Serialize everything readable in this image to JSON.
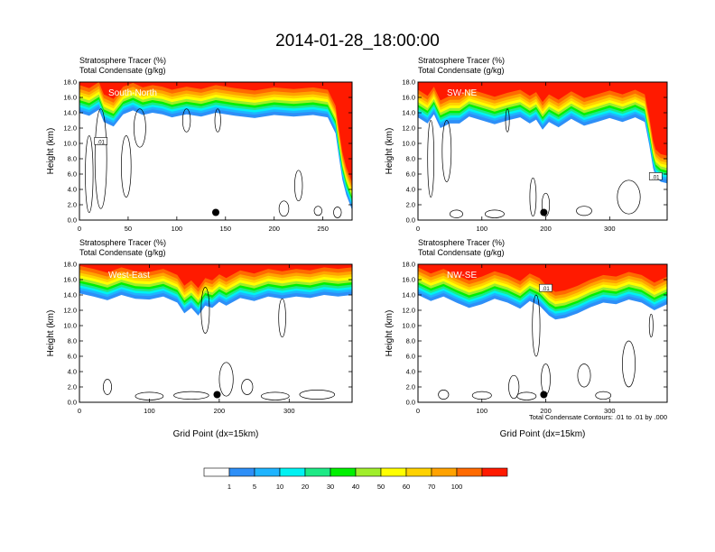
{
  "title": "2014-01-28_18:00:00",
  "colors": {
    "levels": [
      "#ffffff",
      "#2e8ff7",
      "#1fb4ff",
      "#00f2f2",
      "#1de985",
      "#00f000",
      "#a0ee2b",
      "#ffff00",
      "#ffd200",
      "#ffa200",
      "#ff6a00",
      "#ff1a00"
    ],
    "contour": "#000000",
    "marker": "#000000",
    "background": "#ffffff"
  },
  "chart_data": [
    {
      "type": "heatmap",
      "panel_label": "South-North",
      "subtitle": [
        "Stratosphere Tracer   (%)",
        "Total Condensate   (g/kg)"
      ],
      "xlabel": "",
      "ylabel": "Height (km)",
      "xlim": [
        0,
        280
      ],
      "ylim": [
        0,
        18
      ],
      "xticks": [
        0,
        50,
        100,
        150,
        200,
        250
      ],
      "yticks": [
        "0.0",
        "2.0",
        "4.0",
        "6.0",
        "8.0",
        "10.0",
        "12.0",
        "14.0",
        "16.0",
        "18.0"
      ],
      "marker": {
        "x": 140,
        "y": 1.0
      },
      "contour_labels": [
        {
          "text": ".01",
          "x": 22,
          "y": 10.2
        }
      ],
      "tracer_boundary": [
        [
          0,
          15.2
        ],
        [
          10,
          14.8
        ],
        [
          20,
          15.6
        ],
        [
          25,
          14.0
        ],
        [
          35,
          13.4
        ],
        [
          45,
          15.0
        ],
        [
          55,
          15.5
        ],
        [
          65,
          14.9
        ],
        [
          75,
          15.2
        ],
        [
          85,
          15.0
        ],
        [
          95,
          14.6
        ],
        [
          110,
          15.0
        ],
        [
          125,
          14.7
        ],
        [
          140,
          15.2
        ],
        [
          160,
          14.8
        ],
        [
          180,
          14.5
        ],
        [
          200,
          14.9
        ],
        [
          220,
          14.7
        ],
        [
          240,
          14.9
        ],
        [
          255,
          14.6
        ],
        [
          263,
          12.5
        ],
        [
          267,
          9.0
        ],
        [
          270,
          6.5
        ],
        [
          274,
          4.5
        ],
        [
          280,
          2.5
        ]
      ]
    },
    {
      "type": "heatmap",
      "panel_label": "SW-NE",
      "subtitle": [
        "Stratosphere Tracer   (%)",
        "Total Condensate   (g/kg)"
      ],
      "xlabel": "",
      "ylabel": "Height (km)",
      "xlim": [
        0,
        390
      ],
      "ylim": [
        0,
        18
      ],
      "xticks": [
        0,
        100,
        200,
        300
      ],
      "yticks": [
        "0.0",
        "2.0",
        "4.0",
        "6.0",
        "8.0",
        "10.0",
        "12.0",
        "14.0",
        "16.0",
        "18.0"
      ],
      "marker": {
        "x": 197,
        "y": 1.0
      },
      "contour_labels": [
        {
          "text": ".01",
          "x": 372,
          "y": 5.6
        }
      ],
      "tracer_boundary": [
        [
          0,
          14.6
        ],
        [
          15,
          13.8
        ],
        [
          25,
          15.0
        ],
        [
          35,
          13.2
        ],
        [
          50,
          13.8
        ],
        [
          65,
          13.8
        ],
        [
          80,
          14.7
        ],
        [
          100,
          14.2
        ],
        [
          120,
          13.7
        ],
        [
          140,
          14.2
        ],
        [
          160,
          14.6
        ],
        [
          175,
          13.8
        ],
        [
          185,
          14.3
        ],
        [
          195,
          13.0
        ],
        [
          205,
          14.0
        ],
        [
          220,
          13.3
        ],
        [
          240,
          14.4
        ],
        [
          260,
          13.5
        ],
        [
          280,
          14.0
        ],
        [
          300,
          14.5
        ],
        [
          320,
          14.0
        ],
        [
          340,
          14.6
        ],
        [
          355,
          14.0
        ],
        [
          362,
          11.0
        ],
        [
          368,
          8.0
        ],
        [
          372,
          6.8
        ],
        [
          380,
          6.2
        ],
        [
          390,
          6.0
        ]
      ]
    },
    {
      "type": "heatmap",
      "panel_label": "West-East",
      "subtitle": [
        "Stratosphere Tracer   (%)",
        "Total Condensate   (g/kg)"
      ],
      "xlabel": "Grid Point (dx=15km)",
      "ylabel": "Height (km)",
      "xlim": [
        0,
        390
      ],
      "ylim": [
        0,
        18
      ],
      "xticks": [
        0,
        100,
        200,
        300
      ],
      "yticks": [
        "0.0",
        "2.0",
        "4.0",
        "6.0",
        "8.0",
        "10.0",
        "12.0",
        "14.0",
        "16.0",
        "18.0"
      ],
      "marker": {
        "x": 197,
        "y": 1.0
      },
      "contour_labels": [],
      "tracer_boundary": [
        [
          0,
          15.4
        ],
        [
          20,
          15.0
        ],
        [
          40,
          14.5
        ],
        [
          60,
          15.2
        ],
        [
          80,
          14.7
        ],
        [
          100,
          14.6
        ],
        [
          120,
          15.0
        ],
        [
          140,
          14.2
        ],
        [
          150,
          12.8
        ],
        [
          160,
          13.5
        ],
        [
          170,
          12.5
        ],
        [
          180,
          13.8
        ],
        [
          190,
          13.5
        ],
        [
          200,
          14.3
        ],
        [
          210,
          13.8
        ],
        [
          230,
          14.8
        ],
        [
          250,
          14.4
        ],
        [
          270,
          15.0
        ],
        [
          290,
          14.7
        ],
        [
          310,
          15.0
        ],
        [
          330,
          14.8
        ],
        [
          350,
          15.2
        ],
        [
          370,
          15.0
        ],
        [
          390,
          15.2
        ]
      ]
    },
    {
      "type": "heatmap",
      "panel_label": "NW-SE",
      "subtitle": [
        "Stratosphere Tracer   (%)",
        "Total Condensate   (g/kg)"
      ],
      "xlabel": "Grid Point (dx=15km)",
      "ylabel": "Height (km)",
      "xlim": [
        0,
        390
      ],
      "ylim": [
        0,
        18
      ],
      "xticks": [
        0,
        100,
        200,
        300
      ],
      "yticks": [
        "0.0",
        "2.0",
        "4.0",
        "6.0",
        "8.0",
        "10.0",
        "12.0",
        "14.0",
        "16.0",
        "18.0"
      ],
      "marker": {
        "x": 197,
        "y": 1.0
      },
      "contour_labels": [
        {
          "text": ".01",
          "x": 200,
          "y": 14.8
        }
      ],
      "note": "Total Condensate Contours: .01 to .01 by .000",
      "tracer_boundary": [
        [
          0,
          15.2
        ],
        [
          20,
          14.4
        ],
        [
          40,
          15.0
        ],
        [
          60,
          14.2
        ],
        [
          80,
          13.5
        ],
        [
          100,
          14.0
        ],
        [
          120,
          14.7
        ],
        [
          140,
          14.2
        ],
        [
          160,
          13.4
        ],
        [
          175,
          14.4
        ],
        [
          190,
          13.8
        ],
        [
          205,
          12.5
        ],
        [
          215,
          12.0
        ],
        [
          230,
          12.2
        ],
        [
          250,
          12.8
        ],
        [
          270,
          13.6
        ],
        [
          290,
          14.2
        ],
        [
          310,
          14.0
        ],
        [
          330,
          14.6
        ],
        [
          350,
          14.2
        ],
        [
          370,
          13.2
        ],
        [
          390,
          14.0
        ]
      ]
    }
  ],
  "colorbar": {
    "labels": [
      "1",
      "5",
      "10",
      "20",
      "30",
      "40",
      "50",
      "60",
      "70",
      "100"
    ]
  }
}
